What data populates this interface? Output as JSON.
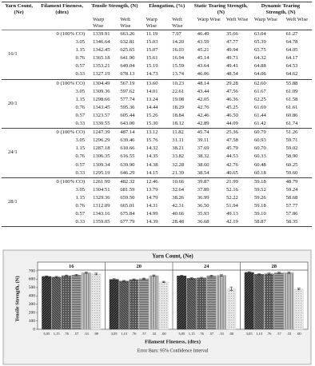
{
  "table": {
    "headers": [
      "Yarn Count, (Ne)",
      "Filament Fineness, (dtex)",
      "Tensile Strength, (N)",
      "Elongation, (%)",
      "Static Tearing Strength, (N)",
      "Dynamic Tearing Strength, (N)"
    ],
    "subheaders": [
      "Warp Wise",
      "Weft Wise",
      "Warp Wise",
      "Weft Wise",
      "Warp Wise",
      "Weft Wise",
      "Warp Wise",
      "Weft Wise"
    ],
    "groups": [
      {
        "yarn_count": "16/1",
        "rows": [
          [
            "0 (100% CO)",
            "1339.91",
            "663.26",
            "11.19",
            "7.97",
            "46.49",
            "35.66",
            "63.04",
            "61.27"
          ],
          [
            "3.05",
            "1346.64",
            "632.81",
            "15.03",
            "14.20",
            "43.59",
            "47.77",
            "65.39",
            "64.78"
          ],
          [
            "1.15",
            "1342.45",
            "625.65",
            "15.07",
            "16.03",
            "45.21",
            "49.94",
            "65.75",
            "64.05"
          ],
          [
            "0.76",
            "1365.18",
            "641.90",
            "15.61",
            "16.94",
            "45.14",
            "49.71",
            "64.32",
            "64.17"
          ],
          [
            "0.57",
            "1353.21",
            "649.04",
            "15.19",
            "15.59",
            "43.64",
            "49.41",
            "64.88",
            "64.53"
          ],
          [
            "0.33",
            "1327.19",
            "678.13",
            "14.73",
            "13.74",
            "46.06",
            "48.54",
            "64.06",
            "64.62"
          ]
        ]
      },
      {
        "yarn_count": "20/1",
        "rows": [
          [
            "0 (100% CO)",
            "1304.49",
            "567.19",
            "13.60",
            "10.23",
            "48.14",
            "29.28",
            "62.60",
            "55.88"
          ],
          [
            "3.05",
            "1309.36",
            "597.62",
            "14.01",
            "22.61",
            "43.44",
            "47.56",
            "61.67",
            "61.09"
          ],
          [
            "1.15",
            "1298.66",
            "577.74",
            "13.24",
            "19.08",
            "42.05",
            "46.36",
            "62.25",
            "61.58"
          ],
          [
            "0.76",
            "1343.45",
            "595.36",
            "14.44",
            "18.29",
            "42.76",
            "45.25",
            "61.69",
            "61.61"
          ],
          [
            "0.57",
            "1323.57",
            "605.44",
            "15.26",
            "18.84",
            "42.46",
            "46.50",
            "61.44",
            "60.86"
          ],
          [
            "0.33",
            "1330.55",
            "643.00",
            "15.30",
            "18.12",
            "42.89",
            "44.09",
            "61.42",
            "61.74"
          ]
        ]
      },
      {
        "yarn_count": "24/1",
        "rows": [
          [
            "0 (100% CO)",
            "1247.39",
            "487.14",
            "13.12",
            "11.82",
            "45.74",
            "25.36",
            "60.79",
            "51.26"
          ],
          [
            "3.05",
            "1296.29",
            "639.46",
            "15.76",
            "31.11",
            "39.11",
            "47.58",
            "60.93",
            "59.71"
          ],
          [
            "1.15",
            "1287.18",
            "610.66",
            "14.32",
            "38.21",
            "37.69",
            "45.79",
            "60.70",
            "59.02"
          ],
          [
            "0.76",
            "1306.35",
            "616.55",
            "14.35",
            "33.82",
            "38.32",
            "44.53",
            "60.33",
            "58.90"
          ],
          [
            "0.57",
            "1309.34",
            "639.90",
            "14.38",
            "32.28",
            "38.60",
            "42.76",
            "60.48",
            "60.25"
          ],
          [
            "0.33",
            "1295.19",
            "646.29",
            "14.15",
            "21.39",
            "38.54",
            "40.65",
            "60.18",
            "59.60"
          ]
        ]
      },
      {
        "yarn_count": "28/1",
        "rows": [
          [
            "0 (100% CO)",
            "1261.99",
            "482.32",
            "12.46",
            "10.66",
            "39.87",
            "21.99",
            "59.18",
            "48.79"
          ],
          [
            "3.05",
            "1304.51",
            "681.59",
            "13.79",
            "32.64",
            "37.89",
            "52.16",
            "59.52",
            "59.24"
          ],
          [
            "1.15",
            "1329.36",
            "659.50",
            "14.79",
            "38.26",
            "36.99",
            "52.22",
            "59.26",
            "58.68"
          ],
          [
            "0.76",
            "1312.09",
            "665.01",
            "14.31",
            "42.31",
            "36.50",
            "51.94",
            "59.18",
            "57.77"
          ],
          [
            "0.57",
            "1343.16",
            "675.84",
            "14.99",
            "40.66",
            "35.93",
            "49.13",
            "59.10",
            "57.86"
          ],
          [
            "0.33",
            "1359.05",
            "677.79",
            "14.39",
            "28.48",
            "36.68",
            "42.19",
            "58.87",
            "58.35"
          ]
        ]
      }
    ]
  },
  "chart_data": {
    "type": "bar",
    "title": "Yarn Count, (Ne)",
    "y_label": "Tensile Strength, (N)",
    "x_label": "Filament Fineness, (dtex)",
    "note": "Error Bars: 95% Confidence Interval",
    "categories": [
      "3,05",
      "1,15",
      ".76",
      ".57",
      ".33",
      ".00"
    ],
    "ylim": [
      0,
      700
    ],
    "yticks": [
      0,
      100,
      200,
      300,
      400,
      500,
      600,
      700
    ],
    "colors": [
      "#333333",
      "#555555",
      "#6a6a6a",
      "#888888",
      "#aaaaaa",
      "#dddddd"
    ],
    "panels": [
      {
        "name": "16",
        "values": [
          632.81,
          625.65,
          641.9,
          649.04,
          678.13,
          663.26
        ],
        "errors": [
          8,
          8,
          8,
          8,
          8,
          10
        ]
      },
      {
        "name": "20",
        "values": [
          597.62,
          577.74,
          595.36,
          605.44,
          643.0,
          567.19
        ],
        "errors": [
          8,
          8,
          8,
          8,
          8,
          8
        ]
      },
      {
        "name": "24",
        "values": [
          639.46,
          610.66,
          616.55,
          639.9,
          646.29,
          487.14
        ],
        "errors": [
          8,
          8,
          8,
          8,
          8,
          20
        ]
      },
      {
        "name": "28",
        "values": [
          681.59,
          659.5,
          665.01,
          675.84,
          677.79,
          482.32
        ],
        "errors": [
          8,
          8,
          8,
          8,
          8,
          10
        ]
      }
    ]
  }
}
